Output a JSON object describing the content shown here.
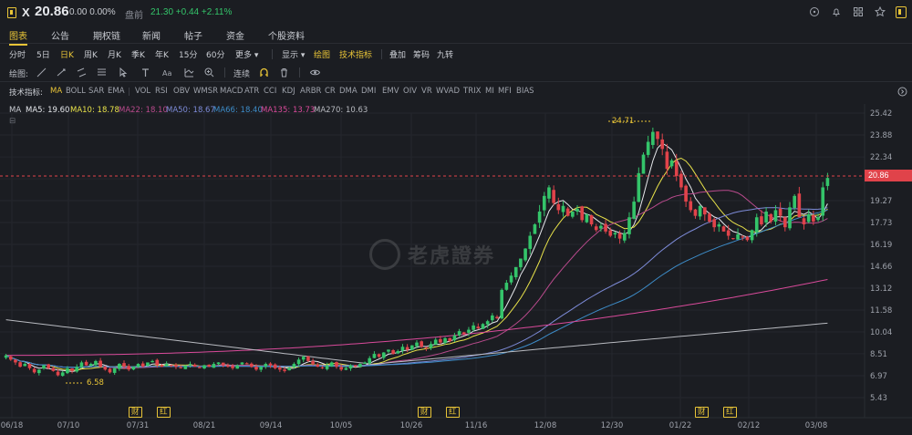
{
  "header": {
    "symbol": "X",
    "price": "20.86",
    "change": "0.00 0.00%",
    "session_label": "盘前",
    "extended": "21.30 +0.44 +2.11%",
    "icons": [
      "target-icon",
      "bell-icon",
      "grid-icon",
      "star-icon",
      "bookmark-icon"
    ]
  },
  "tabs": [
    {
      "label": "图表",
      "active": true
    },
    {
      "label": "公告",
      "active": false
    },
    {
      "label": "期权链",
      "active": false
    },
    {
      "label": "新闻",
      "active": false
    },
    {
      "label": "帖子",
      "active": false
    },
    {
      "label": "资金",
      "active": false
    },
    {
      "label": "个股资料",
      "active": false
    }
  ],
  "periods": {
    "items": [
      "分时",
      "5日",
      "日K",
      "周K",
      "月K",
      "季K",
      "年K",
      "15分",
      "60分",
      "更多"
    ],
    "active": "日K",
    "display": "显示",
    "draw": "绘图",
    "indicators": "技术指标",
    "overlay": "叠加",
    "chips": "筹码",
    "nine": "九转"
  },
  "drawbar": {
    "label": "绘图:",
    "continuous": "连续"
  },
  "indicator_bar": {
    "label": "技术指标:",
    "items": [
      "MA",
      "BOLL",
      "SAR",
      "EMA",
      "VOL",
      "RSI",
      "OBV",
      "WMSR",
      "MACD",
      "ATR",
      "CCI",
      "KDJ",
      "ARBR",
      "CR",
      "DMA",
      "DMI",
      "EMV",
      "OIV",
      "VR",
      "WVAD",
      "TRIX",
      "MI",
      "MFI",
      "BIAS"
    ],
    "active": "MA"
  },
  "legend": [
    {
      "text": "MA",
      "color": "#c9ccd2"
    },
    {
      "text": "MA5: 19.60",
      "color": "#e6e8ec"
    },
    {
      "text": "MA10: 18.78",
      "color": "#e8e24a"
    },
    {
      "text": "MA22: 18.10",
      "color": "#b84a8c"
    },
    {
      "text": "MA50: 18.67",
      "color": "#7d8bd8"
    },
    {
      "text": "MA66: 18.40",
      "color": "#3d8cc8"
    },
    {
      "text": "MA135: 13.73",
      "color": "#d84a9a"
    },
    {
      "text": "MA270: 10.63",
      "color": "#b8bac0"
    }
  ],
  "last_price_tag": "20.86",
  "annotations": {
    "high": "24.71",
    "low": "6.58"
  },
  "fin_badges": [
    "财",
    "红",
    "财",
    "红",
    "财",
    "红"
  ],
  "watermark": "老虎證券",
  "chart_data": {
    "type": "candlestick",
    "y_ticks": [
      "25.42",
      "23.88",
      "22.34",
      "20.80",
      "19.27",
      "17.73",
      "16.19",
      "14.66",
      "13.12",
      "11.58",
      "10.04",
      "8.51",
      "6.97",
      "5.43"
    ],
    "y_tick_values": [
      25.42,
      23.88,
      22.34,
      20.8,
      19.27,
      17.73,
      16.19,
      14.66,
      13.12,
      11.58,
      10.04,
      8.51,
      6.97,
      5.43
    ],
    "x_ticks": [
      "06/18",
      "07/10",
      "07/31",
      "08/21",
      "09/14",
      "10/05",
      "10/26",
      "11/16",
      "12/08",
      "12/30",
      "01/22",
      "02/12",
      "03/08"
    ],
    "last_price": 20.86,
    "high_marker": 24.71,
    "low_marker": 6.58,
    "up_color": "#34c46a",
    "down_color": "#e0434a",
    "closes": [
      8.4,
      8.1,
      7.9,
      7.6,
      7.8,
      7.5,
      7.2,
      7.4,
      7.7,
      7.5,
      7.3,
      7.0,
      7.2,
      7.5,
      7.3,
      7.6,
      7.9,
      7.7,
      7.8,
      8.0,
      7.6,
      7.4,
      7.2,
      7.5,
      7.8,
      7.6,
      7.4,
      7.6,
      7.8,
      7.6,
      7.9,
      8.0,
      7.7,
      7.6,
      7.8,
      7.7,
      7.6,
      7.5,
      7.7,
      7.8,
      7.6,
      7.5,
      7.7,
      7.6,
      7.8,
      7.9,
      7.7,
      7.6,
      7.5,
      7.7,
      7.9,
      7.8,
      7.6,
      7.4,
      7.6,
      7.8,
      7.7,
      7.5,
      7.4,
      7.3,
      7.5,
      7.8,
      8.1,
      8.3,
      8.0,
      7.8,
      7.6,
      7.5,
      7.7,
      7.9,
      7.6,
      7.4,
      7.5,
      7.7,
      7.6,
      7.8,
      7.9,
      8.2,
      8.5,
      8.3,
      8.6,
      8.8,
      8.5,
      8.7,
      9.0,
      8.8,
      9.1,
      9.3,
      9.0,
      8.9,
      9.2,
      9.5,
      9.3,
      9.6,
      9.4,
      9.8,
      10.1,
      9.9,
      10.2,
      10.5,
      10.3,
      10.6,
      10.8,
      11.2,
      11.0,
      13.0,
      13.5,
      14.0,
      14.6,
      15.2,
      15.9,
      16.8,
      17.6,
      18.5,
      19.6,
      20.2,
      19.1,
      18.6,
      18.9,
      18.2,
      18.5,
      18.7,
      17.9,
      18.3,
      17.6,
      17.2,
      17.5,
      17.1,
      16.8,
      17.0,
      16.6,
      17.0,
      18.1,
      19.2,
      21.2,
      22.5,
      23.4,
      24.1,
      23.6,
      22.9,
      21.5,
      22.1,
      21.0,
      20.2,
      19.2,
      18.6,
      18.2,
      18.9,
      18.3,
      17.8,
      17.4,
      17.6,
      17.1,
      16.8,
      16.6,
      16.9,
      16.7,
      16.5,
      17.2,
      18.1,
      17.6,
      18.5,
      17.8,
      18.6,
      18.2,
      17.4,
      18.8,
      19.6,
      18.1,
      17.6,
      18.3,
      17.8,
      18.1,
      20.2,
      20.86
    ]
  }
}
